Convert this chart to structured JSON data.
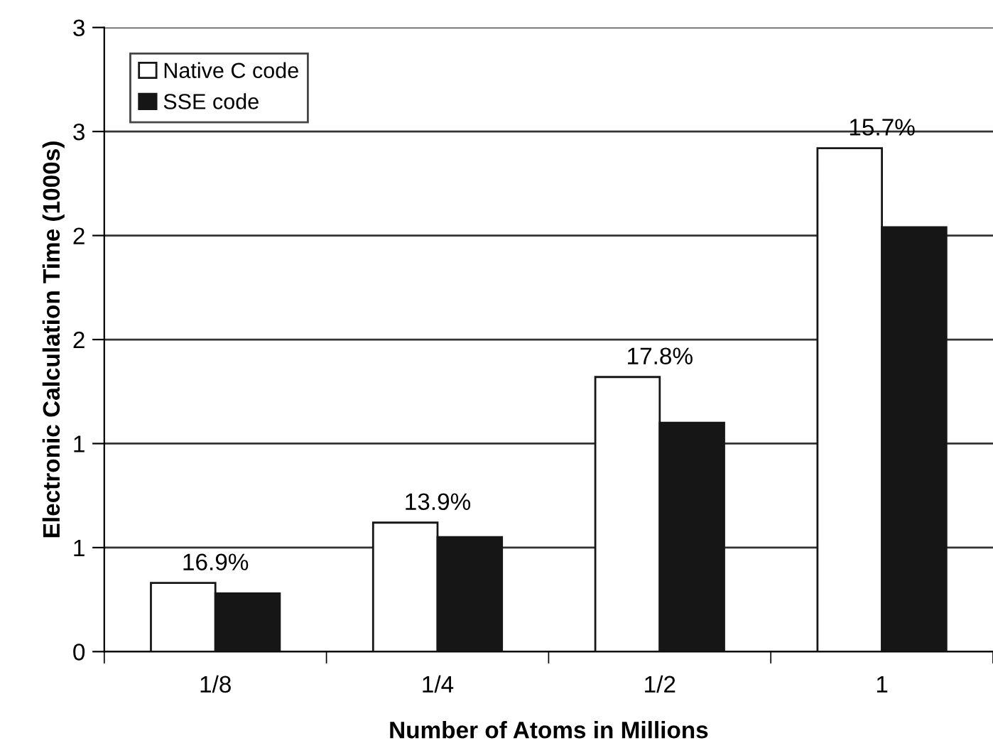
{
  "chart_data": {
    "type": "bar",
    "xlabel": "Number of Atoms in Millions",
    "ylabel": "Electronic Calculation Time (1000s)",
    "categories": [
      "1/8",
      "1/4",
      "1/2",
      "1"
    ],
    "series": [
      {
        "name": "Native C code",
        "color": "#ffffff",
        "values": [
          0.33,
          0.62,
          1.32,
          2.42
        ]
      },
      {
        "name": "SSE code",
        "color": "#161616",
        "values": [
          0.28,
          0.55,
          1.1,
          2.04
        ]
      }
    ],
    "ylim": [
      0,
      3
    ],
    "yticks": [
      0,
      {
        "value": 0.5,
        "label": "1"
      },
      1,
      {
        "value": 1.5,
        "label": "2"
      },
      2,
      {
        "value": 2.5,
        "label": "3"
      },
      3
    ],
    "grid": "y",
    "legend": "top left",
    "annotations": [
      {
        "text": "16.9%",
        "x": "1/8",
        "y": 0.33
      },
      {
        "text": "13.9%",
        "x": "1/4",
        "y": 0.62
      },
      {
        "text": "17.8%",
        "x": "1/2",
        "y": 1.32
      },
      {
        "text": "15.7%",
        "x": "1",
        "y": 2.42
      }
    ]
  }
}
